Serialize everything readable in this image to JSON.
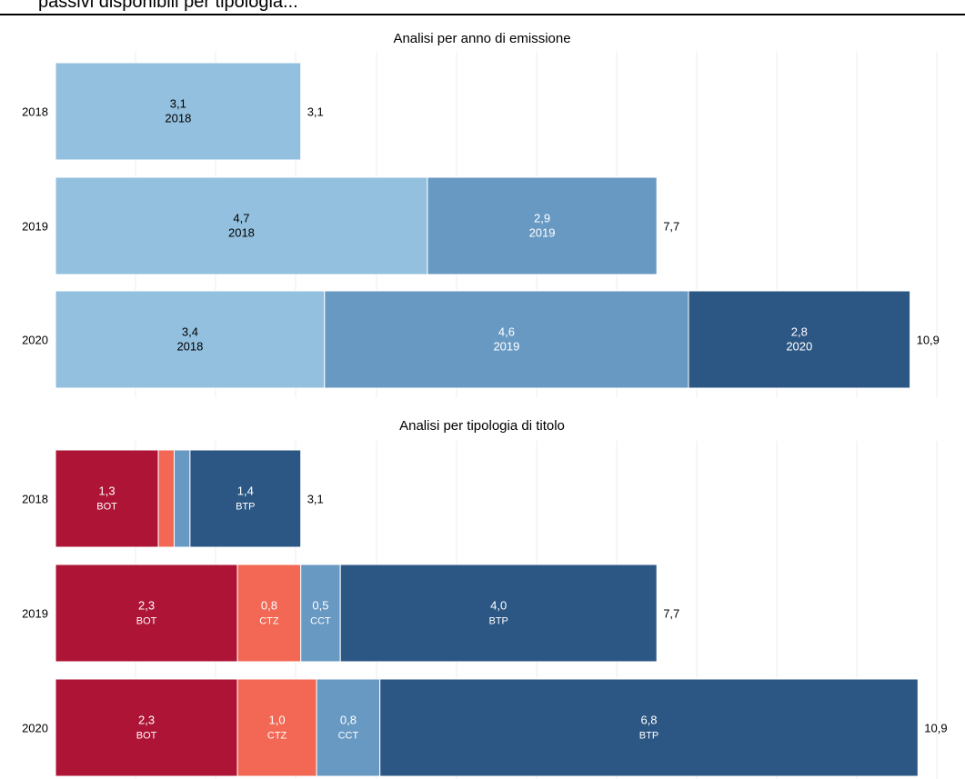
{
  "header": {
    "text": "passivi disponibili per tipologia..."
  },
  "colors": {
    "year_2018": "#93c0de",
    "year_2019": "#6899c3",
    "year_2020": "#2c5784",
    "BOT": "#ae1436",
    "CTZ": "#f26855",
    "CCT": "#6899c3",
    "BTP": "#2c5784"
  },
  "chart_data": [
    {
      "type": "bar",
      "orientation": "horizontal",
      "stacked": true,
      "title": "Analisi per anno di emissione",
      "categories": [
        "2018",
        "2019",
        "2020"
      ],
      "xlim": [
        0,
        11
      ],
      "series": [
        {
          "name": "2018",
          "values": [
            3.1,
            4.7,
            3.4
          ],
          "label_color": "#000000"
        },
        {
          "name": "2019",
          "values": [
            0,
            2.9,
            4.6
          ],
          "label_color": "#ffffff"
        },
        {
          "name": "2020",
          "values": [
            0,
            0,
            2.8
          ],
          "label_color": "#ffffff"
        }
      ],
      "totals": [
        "3,1",
        "7,7",
        "10,9"
      ]
    },
    {
      "type": "bar",
      "orientation": "horizontal",
      "stacked": true,
      "title": "Analisi per tipologia di titolo",
      "categories": [
        "2018",
        "2019",
        "2020"
      ],
      "xlim": [
        0,
        11
      ],
      "series": [
        {
          "name": "BOT",
          "values": [
            1.3,
            2.3,
            2.3
          ],
          "label_color": "#ffffff"
        },
        {
          "name": "CTZ",
          "values": [
            0.2,
            0.8,
            1.0
          ],
          "label_color": "#ffffff"
        },
        {
          "name": "CCT",
          "values": [
            0.2,
            0.5,
            0.8
          ],
          "label_color": "#ffffff"
        },
        {
          "name": "BTP",
          "values": [
            1.4,
            4.0,
            6.8
          ],
          "label_color": "#ffffff"
        }
      ],
      "totals": [
        "3,1",
        "7,7",
        "10,9"
      ]
    }
  ]
}
